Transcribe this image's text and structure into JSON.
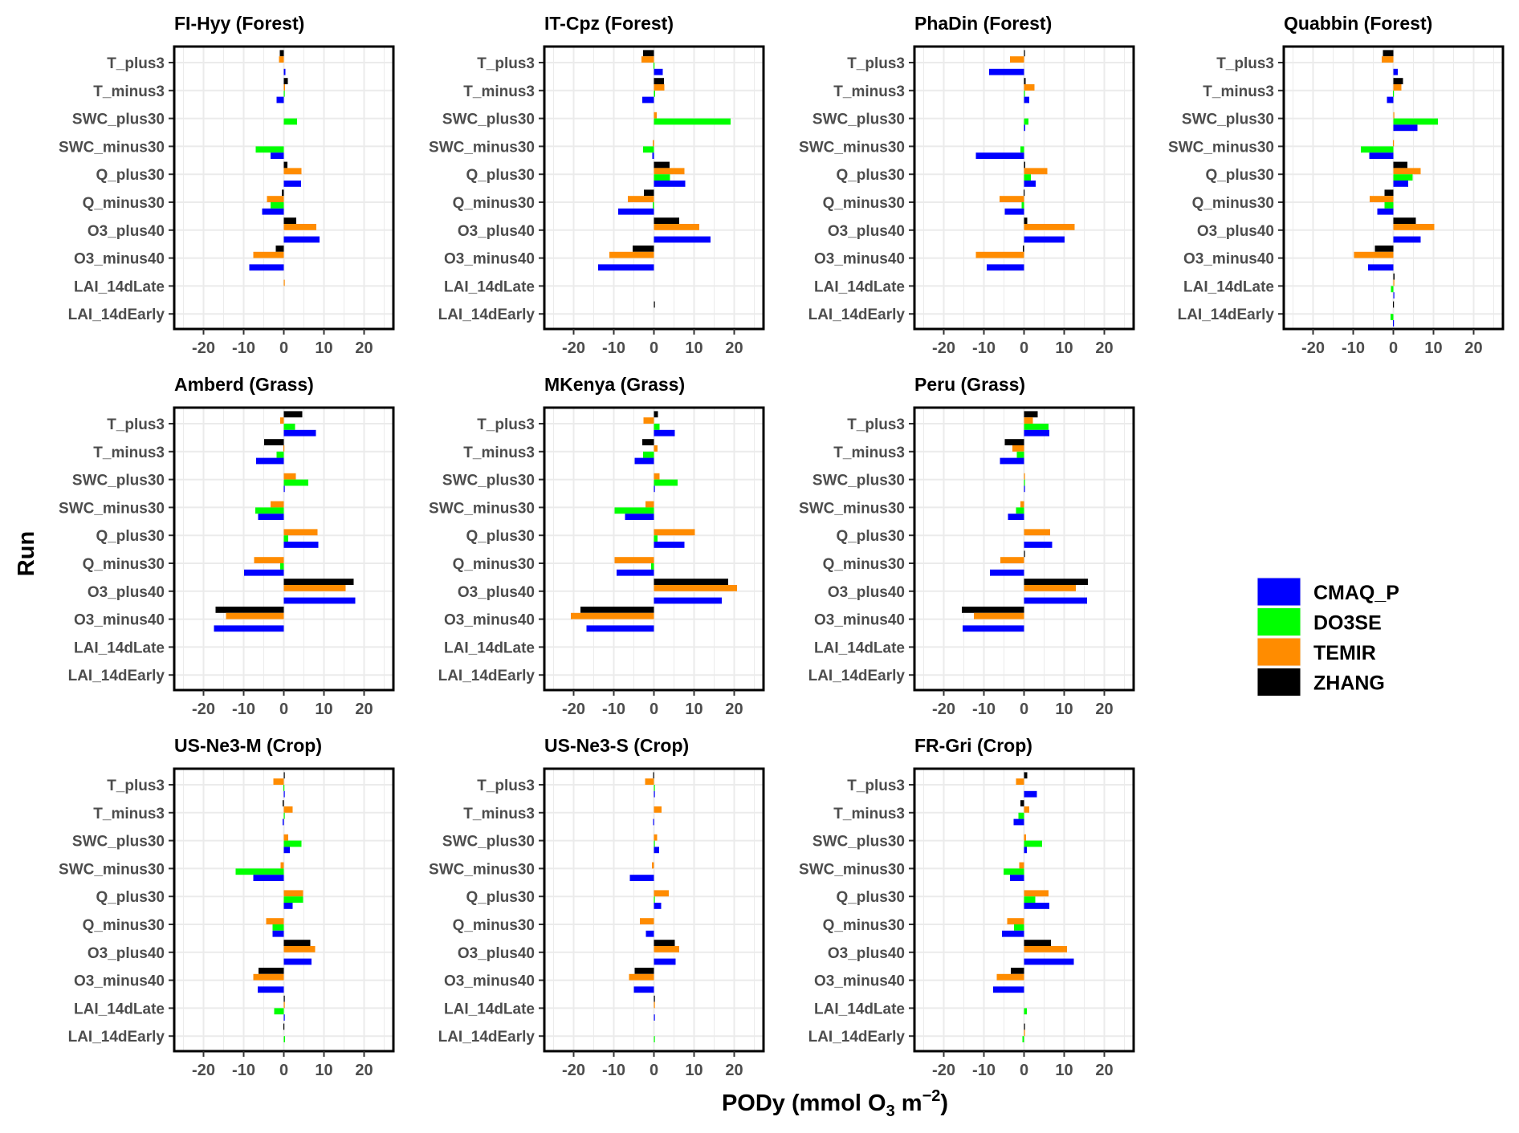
{
  "chart_data": {
    "type": "bar",
    "orientation": "horizontal",
    "xlabel": {
      "main": "PODy",
      "unit_prefix": "(mmol O",
      "unit_sub": "3",
      "unit_mid": " m",
      "unit_sup": "−2",
      "unit_suffix": ")"
    },
    "ylabel": "Run",
    "xlim": [
      -27.3,
      27.3
    ],
    "xticks": [
      -20,
      -10,
      0,
      10,
      20
    ],
    "grid": true,
    "legend_position": "right",
    "categories": [
      "T_plus3",
      "T_minus3",
      "SWC_plus30",
      "SWC_minus30",
      "Q_plus30",
      "Q_minus30",
      "O3_plus40",
      "O3_minus40",
      "LAI_14dLate",
      "LAI_14dEarly"
    ],
    "series_names": [
      "CMAQ_P",
      "DO3SE",
      "TEMIR",
      "ZHANG"
    ],
    "colors": {
      "CMAQ_P": "#0000ff",
      "DO3SE": "#00ff00",
      "TEMIR": "#ff8c00",
      "ZHANG": "#000000"
    },
    "panels": [
      {
        "title": "FI-Hyy (Forest)",
        "series": {
          "CMAQ_P": [
            0.4,
            -1.8,
            0,
            -3.3,
            4.3,
            -5.4,
            8.9,
            -8.6,
            0,
            0
          ],
          "DO3SE": [
            0,
            0.1,
            3.3,
            -7,
            0,
            -3.3,
            0,
            0,
            0,
            0
          ],
          "TEMIR": [
            -1.2,
            0.3,
            0,
            0,
            4.4,
            -4.2,
            8.1,
            -7.6,
            0.1,
            0
          ],
          "ZHANG": [
            -1,
            1,
            0,
            0,
            0.9,
            -0.5,
            3.1,
            -2,
            0,
            0
          ]
        }
      },
      {
        "title": "IT-Cpz (Forest)",
        "series": {
          "CMAQ_P": [
            2.2,
            -2.9,
            0,
            -0.4,
            7.8,
            -8.9,
            14.1,
            -13.9,
            0,
            0
          ],
          "DO3SE": [
            -0.1,
            0.3,
            19.1,
            -2.7,
            4.0,
            -0.3,
            0,
            0,
            0,
            0
          ],
          "TEMIR": [
            -3.1,
            2.6,
            0.7,
            -0.3,
            7.6,
            -6.5,
            11.3,
            -11.1,
            0,
            0
          ],
          "ZHANG": [
            -2.7,
            2.5,
            0,
            0,
            3.9,
            -2.5,
            6.3,
            -5.3,
            0,
            0.1
          ]
        }
      },
      {
        "title": "PhaDin (Forest)",
        "series": {
          "CMAQ_P": [
            -8.7,
            1.3,
            0.3,
            -12,
            2.9,
            -4.8,
            10.1,
            -9.3,
            0,
            0
          ],
          "DO3SE": [
            0,
            0.1,
            1.1,
            -0.9,
            1.7,
            -0.6,
            0,
            0,
            0,
            0
          ],
          "TEMIR": [
            -3.5,
            2.6,
            0,
            0,
            5.8,
            -6.1,
            12.6,
            -12,
            0,
            0
          ],
          "ZHANG": [
            0.1,
            0.4,
            0,
            0,
            0.3,
            -0.1,
            0.8,
            -0.3,
            0,
            0
          ]
        }
      },
      {
        "title": "Quabbin (Forest)",
        "series": {
          "CMAQ_P": [
            1.1,
            -1.6,
            6.0,
            -6,
            3.7,
            -4,
            6.8,
            -6.3,
            0.2,
            -0.1
          ],
          "DO3SE": [
            0,
            -0.1,
            11.1,
            -8.1,
            4.8,
            -2.2,
            0,
            0,
            -0.6,
            -0.7
          ],
          "TEMIR": [
            -2.9,
            2.0,
            0.1,
            -0.1,
            6.8,
            -5.9,
            10.2,
            -9.8,
            0.2,
            0
          ],
          "ZHANG": [
            -2.6,
            2.4,
            0,
            0,
            3.5,
            -2.2,
            5.6,
            -4.6,
            0.3,
            -0.1
          ]
        }
      },
      {
        "title": "Amberd (Grass)",
        "series": {
          "CMAQ_P": [
            8,
            -6.9,
            0.2,
            -6.4,
            8.6,
            -9.9,
            17.8,
            -17.4,
            0,
            0
          ],
          "DO3SE": [
            2.8,
            -1.8,
            6.1,
            -7.1,
            1.1,
            -0.9,
            0,
            0,
            0,
            0
          ],
          "TEMIR": [
            -0.9,
            -0.1,
            3,
            -3.3,
            8.4,
            -7.4,
            15.4,
            -14.4,
            0,
            0
          ],
          "ZHANG": [
            4.6,
            -4.9,
            0,
            0,
            0,
            0,
            17.4,
            -17,
            0,
            0
          ]
        }
      },
      {
        "title": "MKenya (Grass)",
        "series": {
          "CMAQ_P": [
            5.2,
            -4.8,
            0.2,
            -7.2,
            7.6,
            -9.3,
            16.9,
            -16.8,
            0,
            0
          ],
          "DO3SE": [
            1.4,
            -2.7,
            5.9,
            -9.8,
            0.9,
            -0.7,
            0,
            0,
            0,
            0
          ],
          "TEMIR": [
            -2.6,
            0.9,
            1.4,
            -2.1,
            10.2,
            -9.8,
            20.7,
            -20.7,
            0,
            0
          ],
          "ZHANG": [
            1,
            -2.9,
            0,
            0,
            0,
            0,
            18.5,
            -18.3,
            0,
            0
          ]
        }
      },
      {
        "title": "Peru (Grass)",
        "series": {
          "CMAQ_P": [
            6.3,
            -6,
            0.2,
            -4,
            7,
            -8.5,
            15.7,
            -15.3,
            0,
            0
          ],
          "DO3SE": [
            6.1,
            -1.8,
            0.1,
            -2,
            0,
            0,
            0,
            0,
            0,
            0
          ],
          "TEMIR": [
            2.2,
            -2.9,
            0.2,
            -0.9,
            6.5,
            -5.9,
            12.9,
            -12.5,
            0,
            0
          ],
          "ZHANG": [
            3.4,
            -4.8,
            0,
            0,
            0,
            0.1,
            15.9,
            -15.5,
            0,
            0
          ]
        }
      },
      {
        "title": "US-Ne3-M (Crop)",
        "series": {
          "CMAQ_P": [
            0.1,
            -0.3,
            1.5,
            -7.6,
            2.2,
            -2.8,
            6.9,
            -6.5,
            0.1,
            0
          ],
          "DO3SE": [
            -0.1,
            0.1,
            4.4,
            -12,
            4.8,
            -2.8,
            0,
            0,
            -2.4,
            0.3
          ],
          "TEMIR": [
            -2.6,
            2.2,
            1.1,
            -0.8,
            4.8,
            -4.4,
            7.8,
            -7.6,
            0.1,
            0
          ],
          "ZHANG": [
            0.1,
            -0.3,
            0,
            0,
            0,
            0,
            6.6,
            -6.3,
            0.1,
            -0.1
          ]
        }
      },
      {
        "title": "US-Ne3-S (Crop)",
        "series": {
          "CMAQ_P": [
            0.2,
            -0.2,
            1.3,
            -6,
            1.8,
            -2,
            5.4,
            -5,
            0.2,
            0
          ],
          "DO3SE": [
            0.1,
            0,
            0.2,
            0,
            0.2,
            0,
            0,
            0,
            0,
            0.2
          ],
          "TEMIR": [
            -2.2,
            1.9,
            0.8,
            -0.5,
            3.7,
            -3.5,
            6.3,
            -6.2,
            0.2,
            0
          ],
          "ZHANG": [
            -0.2,
            0,
            0,
            0,
            0,
            0,
            5.2,
            -4.8,
            0.2,
            0
          ]
        }
      },
      {
        "title": "FR-Gri (Crop)",
        "series": {
          "CMAQ_P": [
            3.2,
            -2.6,
            0.7,
            -3.5,
            6.3,
            -5.5,
            12.4,
            -7.7,
            0,
            0
          ],
          "DO3SE": [
            0,
            -1.4,
            4.5,
            -5.1,
            2.8,
            -2.5,
            0,
            0,
            0.7,
            -0.4
          ],
          "TEMIR": [
            -2,
            1.3,
            0.5,
            -1.2,
            6.1,
            -4.2,
            10.7,
            -6.8,
            0,
            0.1
          ],
          "ZHANG": [
            0.8,
            -0.9,
            0,
            0,
            0,
            0,
            6.7,
            -3.3,
            0,
            0.1
          ]
        }
      }
    ]
  }
}
